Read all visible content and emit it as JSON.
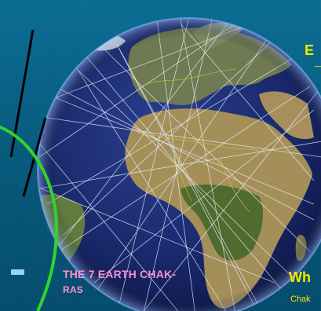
{
  "slide": {
    "caption_line1": "The 7 Earth Chak-",
    "caption_line2": "ras",
    "heading_right": "E",
    "heading_bottom": "Wh",
    "subtext_bottom": "Chak"
  },
  "colors": {
    "background": "#0a6a8f",
    "caption": "#ff8fd0",
    "heading": "#f5e600",
    "arc": "#2dd62d"
  },
  "icons": {
    "globe": "earth-grid-globe-icon"
  }
}
